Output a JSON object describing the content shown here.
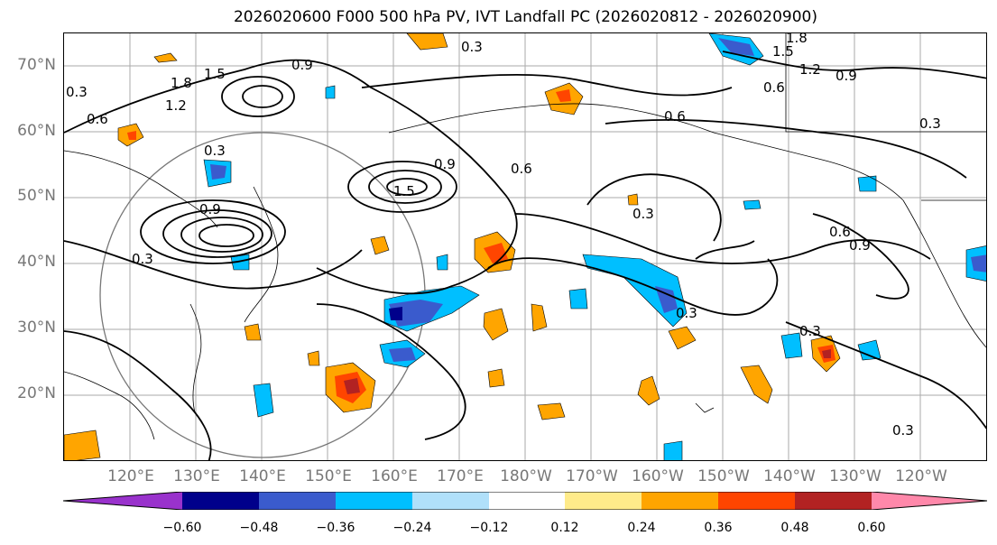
{
  "title": "2026020600 F000 500 hPa PV, IVT Landfall PC (2026020812 - 2026020900)",
  "lat_labels": [
    "70°N",
    "60°N",
    "50°N",
    "40°N",
    "30°N",
    "20°N"
  ],
  "lon_labels": [
    "120°E",
    "130°E",
    "140°E",
    "150°E",
    "160°E",
    "170°E",
    "180°W",
    "170°W",
    "160°W",
    "150°W",
    "140°W",
    "130°W",
    "120°W"
  ],
  "colorbar": {
    "ticks": [
      "−0.60",
      "−0.48",
      "−0.36",
      "−0.24",
      "−0.12",
      "0.12",
      "0.24",
      "0.36",
      "0.48",
      "0.60"
    ],
    "colors": [
      "#9932cc",
      "#00008b",
      "#3a5bcd",
      "#00bfff",
      "#b0e0fa",
      "#ffffff",
      "#ffeb8a",
      "#ffa500",
      "#ff4500",
      "#b22222",
      "#ff88aa"
    ]
  },
  "contour_labels": [
    "0.3",
    "1.8",
    "1.5",
    "1.2",
    "0.6",
    "0.9",
    "0.6",
    "0.3",
    "0.9",
    "1.5",
    "0.6",
    "0.3",
    "0.3",
    "0.3",
    "0.6",
    "0.9",
    "0.3",
    "0.3",
    "0.3",
    "0.3",
    "0.9",
    "1.2",
    "1.5",
    "1.8",
    "0.9",
    "0.6"
  ]
}
